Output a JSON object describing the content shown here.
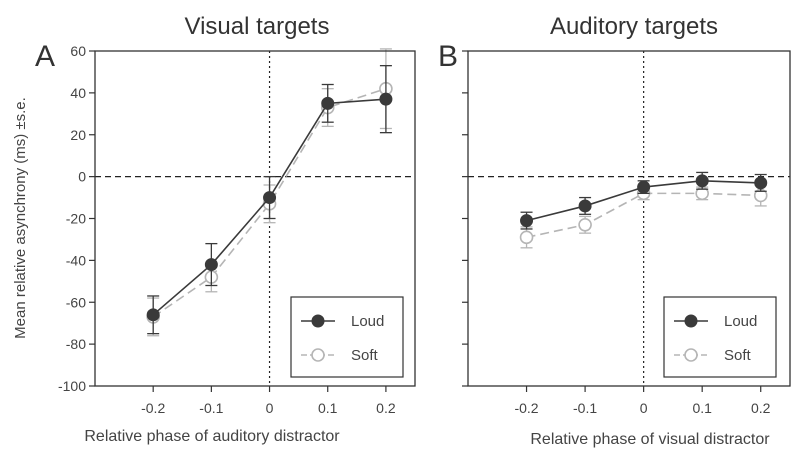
{
  "y_axis_label": "Mean relative asynchrony (ms) ±s.e.",
  "chart_data": [
    {
      "type": "line",
      "panel_letter": "A",
      "title": "Visual targets",
      "xlabel": "Relative phase of auditory distractor",
      "ylabel": "Mean relative asynchrony (ms) ±s.e.",
      "x": [
        -0.2,
        -0.1,
        0,
        0.1,
        0.2
      ],
      "x_tick_labels": [
        "-0.2",
        "-0.1",
        "0",
        "0.1",
        "0.2"
      ],
      "xlim": [
        -0.3,
        0.25
      ],
      "ylim": [
        -100,
        60
      ],
      "y_ticks": [
        -100,
        -80,
        -60,
        -40,
        -20,
        0,
        20,
        40,
        60
      ],
      "show_y_tick_labels": true,
      "reference_lines": {
        "x": 0,
        "y": 0,
        "style": "dotted / dashed"
      },
      "legend_position": "bottom-right",
      "series": [
        {
          "name": "Loud",
          "values": [
            -66,
            -42,
            -10,
            35,
            37
          ],
          "errors": [
            9,
            10,
            10,
            9,
            16
          ],
          "color": "#3a3a3a",
          "marker": "filled-circle",
          "line": "solid"
        },
        {
          "name": "Soft",
          "values": [
            -67,
            -48,
            -13,
            33,
            42
          ],
          "errors": [
            9,
            7,
            9,
            9,
            19
          ],
          "color": "#b5b5b5",
          "marker": "open-circle",
          "line": "dashed"
        }
      ]
    },
    {
      "type": "line",
      "panel_letter": "B",
      "title": "Auditory targets",
      "xlabel": "Relative phase of visual distractor",
      "ylabel": "",
      "x": [
        -0.2,
        -0.1,
        0,
        0.1,
        0.2
      ],
      "x_tick_labels": [
        "-0.2",
        "-0.1",
        "0",
        "0.1",
        "0.2"
      ],
      "xlim": [
        -0.3,
        0.25
      ],
      "ylim": [
        -100,
        60
      ],
      "y_ticks": [
        -100,
        -80,
        -60,
        -40,
        -20,
        0,
        20,
        40,
        60
      ],
      "show_y_tick_labels": false,
      "reference_lines": {
        "x": 0,
        "y": 0,
        "style": "dotted / dashed"
      },
      "legend_position": "bottom-right",
      "series": [
        {
          "name": "Loud",
          "values": [
            -21,
            -14,
            -5,
            -2,
            -3
          ],
          "errors": [
            4,
            4,
            3,
            4,
            4
          ],
          "color": "#3a3a3a",
          "marker": "filled-circle",
          "line": "solid"
        },
        {
          "name": "Soft",
          "values": [
            -29,
            -23,
            -8,
            -8,
            -9
          ],
          "errors": [
            5,
            4,
            3,
            3,
            5
          ],
          "color": "#b5b5b5",
          "marker": "open-circle",
          "line": "dashed"
        }
      ]
    }
  ]
}
